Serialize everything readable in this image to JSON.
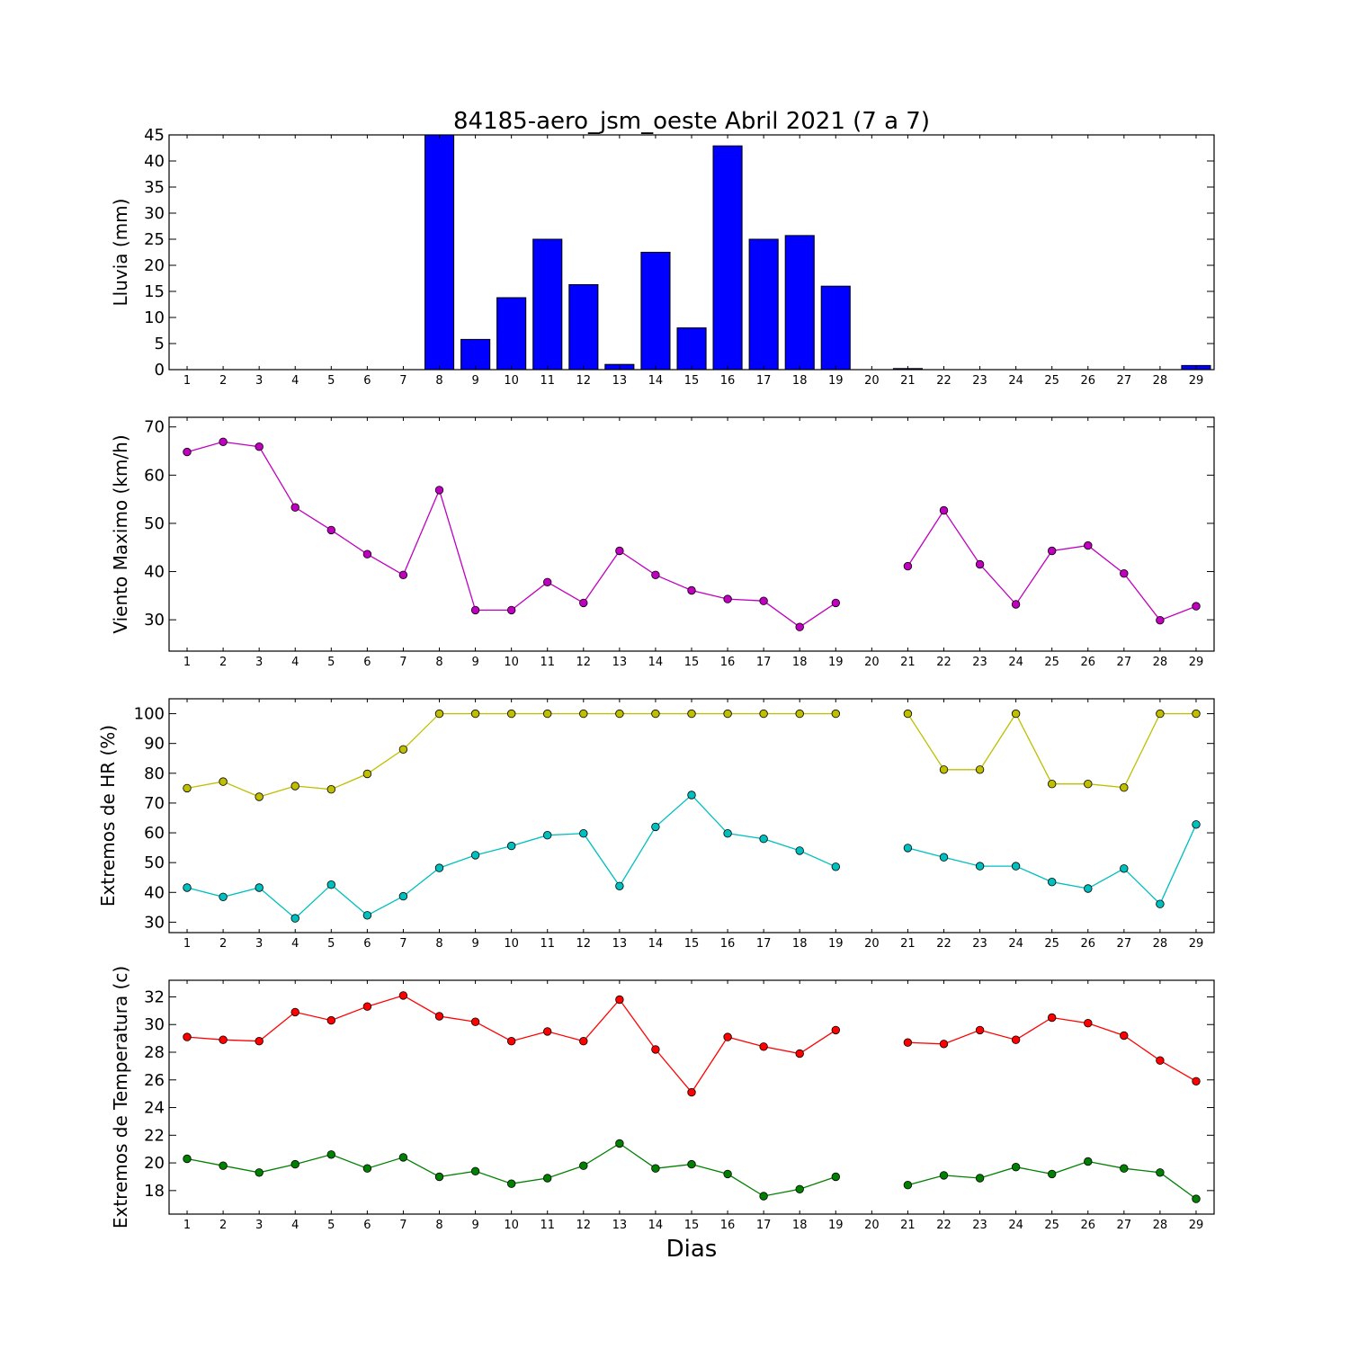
{
  "title": "84185-aero_jsm_oeste Abril 2021  (7 a 7)",
  "xlabel": "Dias",
  "chart_data": [
    {
      "type": "bar",
      "ylabel": "Lluvia (mm)",
      "ylim": [
        0,
        45
      ],
      "yticks": [
        0,
        5,
        10,
        15,
        20,
        25,
        30,
        35,
        40,
        45
      ],
      "xlim": [
        0.5,
        29.5
      ],
      "categories": [
        1,
        2,
        3,
        4,
        5,
        6,
        7,
        8,
        9,
        10,
        11,
        12,
        13,
        14,
        15,
        16,
        17,
        18,
        19,
        20,
        21,
        22,
        23,
        24,
        25,
        26,
        27,
        28,
        29
      ],
      "series": [
        {
          "color": "#0000ff",
          "values": [
            0,
            0,
            0,
            0,
            0,
            0,
            0,
            45,
            5.8,
            13.8,
            25,
            16.3,
            1,
            22.5,
            8,
            42.9,
            25,
            25.7,
            16,
            null,
            0.2,
            0,
            0,
            0,
            0,
            0,
            0,
            0,
            0.8
          ]
        }
      ]
    },
    {
      "type": "line",
      "ylabel": "Viento Maximo (km/h)",
      "ylim": [
        23.5,
        72
      ],
      "yticks": [
        30,
        40,
        50,
        60,
        70
      ],
      "xlim": [
        0.5,
        29.5
      ],
      "categories": [
        1,
        2,
        3,
        4,
        5,
        6,
        7,
        8,
        9,
        10,
        11,
        12,
        13,
        14,
        15,
        16,
        17,
        18,
        19,
        20,
        21,
        22,
        23,
        24,
        25,
        26,
        27,
        28,
        29
      ],
      "series": [
        {
          "color": "#bf00bf",
          "values": [
            64.8,
            66.9,
            65.9,
            53.3,
            48.6,
            43.6,
            39.3,
            56.9,
            32.0,
            32.0,
            37.8,
            33.5,
            44.3,
            39.3,
            36.1,
            34.3,
            33.9,
            28.5,
            33.5,
            null,
            41.1,
            52.7,
            41.5,
            33.2,
            44.3,
            45.4,
            39.6,
            29.9,
            32.8
          ]
        }
      ]
    },
    {
      "type": "line",
      "ylabel": "Extremos de HR (%)",
      "ylim": [
        26.5,
        105
      ],
      "yticks": [
        30,
        40,
        50,
        60,
        70,
        80,
        90,
        100
      ],
      "xlim": [
        0.5,
        29.5
      ],
      "categories": [
        1,
        2,
        3,
        4,
        5,
        6,
        7,
        8,
        9,
        10,
        11,
        12,
        13,
        14,
        15,
        16,
        17,
        18,
        19,
        20,
        21,
        22,
        23,
        24,
        25,
        26,
        27,
        28,
        29
      ],
      "series": [
        {
          "color": "#bfbf00",
          "values": [
            75,
            77.2,
            72.1,
            75.7,
            74.6,
            79.8,
            88,
            100,
            100,
            100,
            100,
            100,
            100,
            100,
            100,
            100,
            100,
            100,
            100,
            null,
            100,
            81.2,
            81.2,
            100,
            76.4,
            76.4,
            75.2,
            100,
            100
          ]
        },
        {
          "color": "#00bfbf",
          "values": [
            41.6,
            38.5,
            41.6,
            31.3,
            42.6,
            32.3,
            38.7,
            48.2,
            52.5,
            55.6,
            59.2,
            59.8,
            42.1,
            62,
            72.7,
            59.8,
            58,
            54,
            48.6,
            null,
            54.9,
            51.8,
            48.8,
            48.8,
            43.5,
            41.3,
            48,
            36.1,
            62.8
          ]
        }
      ]
    },
    {
      "type": "line",
      "ylabel": "Extremos de Temperatura (c)",
      "ylim": [
        16.3,
        33.2
      ],
      "yticks": [
        18,
        20,
        22,
        24,
        26,
        28,
        30,
        32
      ],
      "xlim": [
        0.5,
        29.5
      ],
      "categories": [
        1,
        2,
        3,
        4,
        5,
        6,
        7,
        8,
        9,
        10,
        11,
        12,
        13,
        14,
        15,
        16,
        17,
        18,
        19,
        20,
        21,
        22,
        23,
        24,
        25,
        26,
        27,
        28,
        29
      ],
      "series": [
        {
          "color": "#ff0000",
          "values": [
            29.1,
            28.9,
            28.8,
            30.9,
            30.3,
            31.3,
            32.1,
            30.6,
            30.2,
            28.8,
            29.5,
            28.8,
            31.8,
            28.2,
            25.1,
            29.1,
            28.4,
            27.9,
            29.6,
            null,
            28.7,
            28.6,
            29.6,
            28.9,
            30.5,
            30.1,
            29.2,
            27.4,
            25.9
          ]
        },
        {
          "color": "#008000",
          "values": [
            20.3,
            19.8,
            19.3,
            19.9,
            20.6,
            19.6,
            20.4,
            19.0,
            19.4,
            18.5,
            18.9,
            19.8,
            21.4,
            19.6,
            19.9,
            19.2,
            17.6,
            18.1,
            19.0,
            null,
            18.4,
            19.1,
            18.9,
            19.7,
            19.2,
            20.1,
            19.6,
            19.3,
            17.4
          ]
        }
      ]
    }
  ]
}
